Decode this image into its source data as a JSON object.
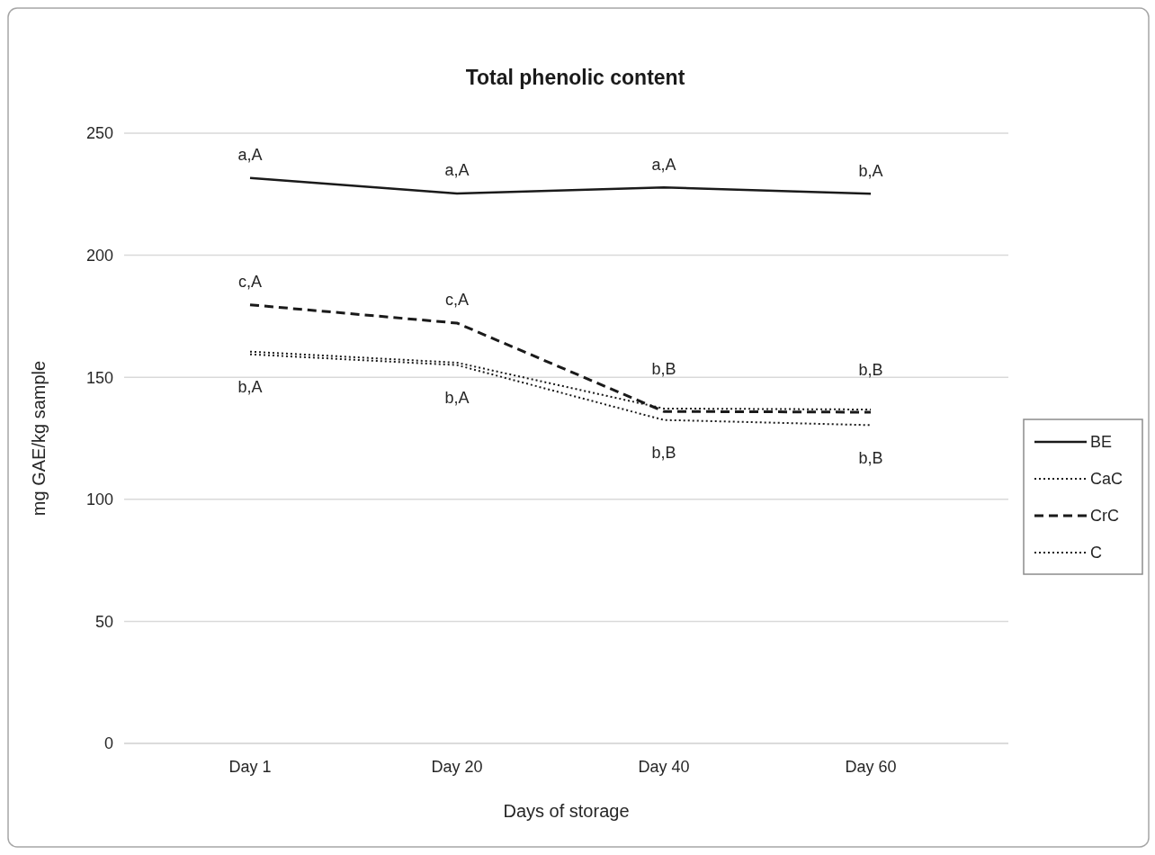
{
  "chart_data": {
    "type": "line",
    "title": "Total phenolic content",
    "xlabel": "Days of storage",
    "ylabel": "mg GAE/kg sample",
    "categories": [
      "Day 1",
      "Day 20",
      "Day 40",
      "Day 60"
    ],
    "series": [
      {
        "name": "BE",
        "color": "#1a1a1a",
        "line_style": "solid",
        "values": [
          231.7,
          225.3,
          227.8,
          225.2
        ]
      },
      {
        "name": "CaC",
        "color": "#1a1a1a",
        "line_style": "dotted",
        "values": [
          160.5,
          156,
          137.2,
          136.8
        ]
      },
      {
        "name": "CrC",
        "color": "#1a1a1a",
        "line_style": "dashed",
        "values": [
          179.7,
          172.2,
          136,
          135.7
        ]
      },
      {
        "name": "C",
        "color": "#1a1a1a",
        "line_style": "dotted",
        "values": [
          159.4,
          155,
          132.5,
          130.4
        ]
      }
    ],
    "ylim": [
      0,
      250
    ],
    "yticks": [
      0,
      50,
      100,
      150,
      200,
      250
    ],
    "grid": "y",
    "legend": "right",
    "marker": "none",
    "annotations": [
      {
        "text": "a,A",
        "x": "Day 1",
        "y": 231.7
      },
      {
        "text": "a,A",
        "x": "Day 20",
        "y": 225.3
      },
      {
        "text": "a,A",
        "x": "Day 40",
        "y": 227.8
      },
      {
        "text": "b,A",
        "x": "Day 60",
        "y": 225.2
      },
      {
        "text": "c,A",
        "x": "Day 1",
        "y": 179.7
      },
      {
        "text": "c,A",
        "x": "Day 20",
        "y": 172.2
      },
      {
        "text": "b,B",
        "x": "Day 40",
        "y": 137.2
      },
      {
        "text": "b,B",
        "x": "Day 60",
        "y": 136.8
      },
      {
        "text": "b,A",
        "x": "Day 1",
        "y": 159.4
      },
      {
        "text": "b,A",
        "x": "Day 20",
        "y": 155
      },
      {
        "text": "b,B",
        "x": "Day 40",
        "y": 132.5
      },
      {
        "text": "b,B",
        "x": "Day 60",
        "y": 130.4
      }
    ]
  }
}
